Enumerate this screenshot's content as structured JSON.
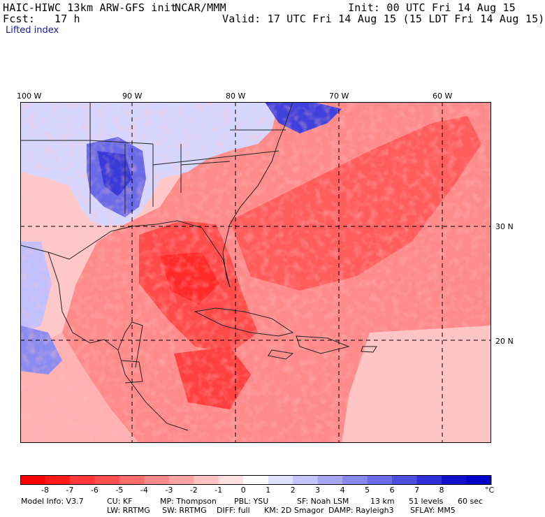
{
  "header": {
    "model": "HAIC-HIWC 13km ARW-GFS init",
    "org": "NCAR/MMM",
    "init": "Init: 00 UTC Fri 14 Aug 15",
    "fcst": "Fcst:   17 h",
    "valid": "Valid: 17 UTC Fri 14 Aug 15 (15 LDT Fri 14 Aug 15)",
    "field": "Lifted index"
  },
  "map": {
    "lon_labels": [
      "100 W",
      "90 W",
      "80 W",
      "70 W",
      "60 W"
    ],
    "lat_labels": [
      "30 N",
      "20 N"
    ],
    "colors": {
      "strong_neg": "#ff1a1a",
      "mid_neg": "#ff6a6a",
      "weak_neg": "#ffb8b8",
      "neutral": "#ffffff",
      "weak_pos": "#c8c8ff",
      "mid_pos": "#6e6ef0",
      "strong_pos": "#1a1ad6"
    }
  },
  "colorbar": {
    "ticks": [
      "-8",
      "-7",
      "-6",
      "-5",
      "-4",
      "-3",
      "-2",
      "-1",
      "0",
      "1",
      "2",
      "3",
      "4",
      "5",
      "6",
      "7",
      "8"
    ],
    "unit": "°C",
    "colors": [
      "#ff0000",
      "#ff1a1a",
      "#ff3838",
      "#ff5050",
      "#ff6c6c",
      "#ff8888",
      "#ffa4a4",
      "#ffc2c2",
      "#ffe0e0",
      "#ffffff",
      "#e0e0ff",
      "#c4c4ff",
      "#a6a6f5",
      "#8888ee",
      "#6c6ce6",
      "#4e4ede",
      "#3030d6",
      "#1010cc",
      "#0000c8"
    ]
  },
  "footer": {
    "line1": [
      "Model Info: V3.7",
      "CU: KF",
      "MP: Thompson",
      "PBL: YSU",
      "SF: Noah LSM",
      "13 km",
      "51 levels",
      "60 sec"
    ],
    "line2": [
      "LW: RRTMG",
      "SW: RRTMG",
      "DIFF: full",
      "KM: 2D Smagor",
      "DAMP: Rayleigh3",
      "SFLAY: MM5"
    ]
  }
}
